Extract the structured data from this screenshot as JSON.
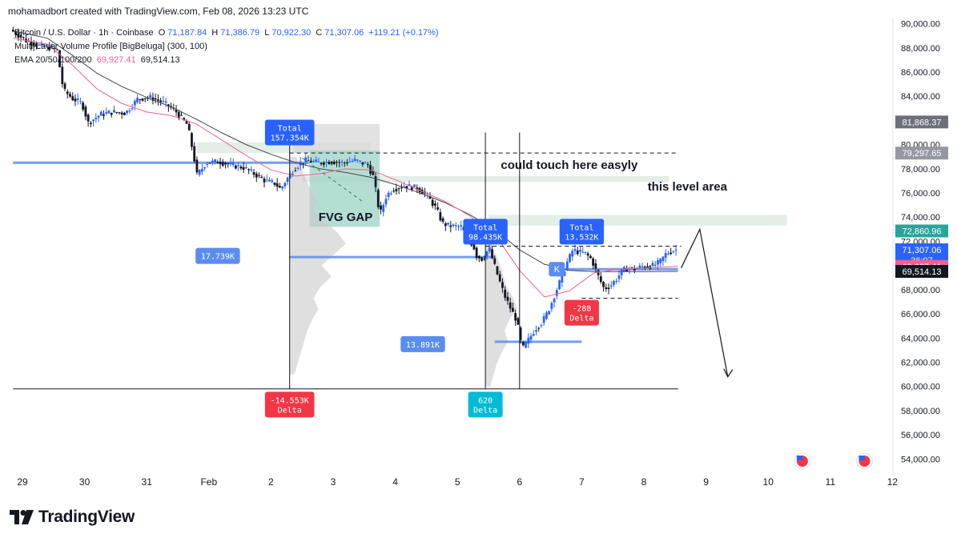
{
  "header": {
    "attribution": "mohamadbort created with TradingView.com, Feb 08, 2026 13:23 UTC"
  },
  "legend": {
    "symbol": "Bitcoin / U.S. Dollar · 1h · Coinbase",
    "open_label": "O",
    "open": "71,187.84",
    "high_label": "H",
    "high": "71,386.79",
    "low_label": "L",
    "low": "70,922.30",
    "close_label": "C",
    "close": "71,307.06",
    "change": "+119.21 (+0.17%)",
    "indicator1": "Multi-Layer Volume Profile [BigBeluga] (300, 100)",
    "indicator2_name": "EMA 20/50/100/200",
    "ema_a": "69,927.41",
    "ema_b": "69,514.13"
  },
  "branding": {
    "logo_text": "TradingView"
  },
  "colors": {
    "up": "#2962ff",
    "down": "#131722",
    "ema_fast": "#f06292",
    "ema_slow": "#434651",
    "level": "#5b8def",
    "zone": "#e3eee6",
    "fvg": "#9bd3c5",
    "delta_red": "#f23645",
    "delta_teal": "#00bcd4",
    "total_blue": "#2962ff"
  },
  "chart_data": {
    "type": "candlestick",
    "symbol": "BTCUSD",
    "timeframe": "1h",
    "ylim": [
      52700,
      90500
    ],
    "xlim": [
      28.85,
      12.0
    ],
    "y_ticks": [
      90000,
      88000,
      86000,
      84000,
      82000,
      80000,
      78000,
      76000,
      74000,
      72000,
      70000,
      68000,
      66000,
      64000,
      62000,
      60000,
      58000,
      56000,
      54000
    ],
    "y_tick_labels": [
      "90,000.00",
      "88,000.00",
      "86,000.00",
      "84,000.00",
      "82,000.00",
      "80,000.00",
      "78,000.00",
      "76,000.00",
      "74,000.00",
      "72,000.00",
      "70,000.00",
      "68,000.00",
      "66,000.00",
      "64,000.00",
      "62,000.00",
      "60,000.00",
      "58,000.00",
      "56,000.00",
      "54,000.00"
    ],
    "x_ticks": [
      {
        "label": "29",
        "day": 29
      },
      {
        "label": "30",
        "day": 30
      },
      {
        "label": "31",
        "day": 31
      },
      {
        "label": "Feb",
        "day": 32
      },
      {
        "label": "2",
        "day": 33
      },
      {
        "label": "3",
        "day": 34
      },
      {
        "label": "4",
        "day": 35
      },
      {
        "label": "5",
        "day": 36
      },
      {
        "label": "6",
        "day": 37
      },
      {
        "label": "7",
        "day": 38
      },
      {
        "label": "8",
        "day": 39
      },
      {
        "label": "9",
        "day": 40
      },
      {
        "label": "10",
        "day": 41
      },
      {
        "label": "11",
        "day": 42
      },
      {
        "label": "12",
        "day": 43
      }
    ],
    "price_path": [
      [
        28.85,
        89500
      ],
      [
        29.1,
        88600
      ],
      [
        29.3,
        88200
      ],
      [
        29.5,
        88000
      ],
      [
        29.6,
        87800
      ],
      [
        29.7,
        84500
      ],
      [
        29.85,
        83800
      ],
      [
        30.0,
        83400
      ],
      [
        30.1,
        81800
      ],
      [
        30.3,
        82500
      ],
      [
        30.5,
        82700
      ],
      [
        30.7,
        82600
      ],
      [
        30.9,
        83800
      ],
      [
        31.1,
        83900
      ],
      [
        31.3,
        83500
      ],
      [
        31.5,
        82800
      ],
      [
        31.7,
        81600
      ],
      [
        31.8,
        79000
      ],
      [
        31.85,
        77500
      ],
      [
        31.9,
        77800
      ],
      [
        32.0,
        78500
      ],
      [
        32.2,
        78600
      ],
      [
        32.4,
        78300
      ],
      [
        32.6,
        78100
      ],
      [
        32.8,
        77500
      ],
      [
        32.95,
        77000
      ],
      [
        33.1,
        76800
      ],
      [
        33.2,
        76300
      ],
      [
        33.25,
        76800
      ],
      [
        33.4,
        77900
      ],
      [
        33.5,
        78400
      ],
      [
        33.6,
        78700
      ],
      [
        33.8,
        78500
      ],
      [
        34.0,
        78600
      ],
      [
        34.2,
        78500
      ],
      [
        34.4,
        78700
      ],
      [
        34.6,
        78300
      ],
      [
        34.7,
        77200
      ],
      [
        34.75,
        75300
      ],
      [
        34.8,
        74300
      ],
      [
        34.9,
        75800
      ],
      [
        35.0,
        76300
      ],
      [
        35.2,
        76600
      ],
      [
        35.4,
        76400
      ],
      [
        35.55,
        75800
      ],
      [
        35.7,
        74700
      ],
      [
        35.8,
        73500
      ],
      [
        35.9,
        73300
      ],
      [
        36.1,
        73200
      ],
      [
        36.2,
        72300
      ],
      [
        36.3,
        71600
      ],
      [
        36.35,
        70800
      ],
      [
        36.45,
        70500
      ],
      [
        36.55,
        71500
      ],
      [
        36.6,
        70600
      ],
      [
        36.7,
        69000
      ],
      [
        36.8,
        67500
      ],
      [
        36.9,
        66400
      ],
      [
        37.0,
        65400
      ],
      [
        37.05,
        63800
      ],
      [
        37.1,
        63200
      ],
      [
        37.2,
        64000
      ],
      [
        37.3,
        64800
      ],
      [
        37.4,
        65300
      ],
      [
        37.5,
        66200
      ],
      [
        37.6,
        67500
      ],
      [
        37.7,
        68800
      ],
      [
        37.8,
        70200
      ],
      [
        37.9,
        71300
      ],
      [
        38.0,
        71100
      ],
      [
        38.1,
        71000
      ],
      [
        38.2,
        70500
      ],
      [
        38.3,
        69200
      ],
      [
        38.4,
        68100
      ],
      [
        38.5,
        68300
      ],
      [
        38.6,
        68900
      ],
      [
        38.7,
        69600
      ],
      [
        38.8,
        69800
      ],
      [
        38.9,
        69700
      ],
      [
        39.0,
        69900
      ],
      [
        39.2,
        70000
      ],
      [
        39.3,
        70300
      ],
      [
        39.4,
        71000
      ],
      [
        39.55,
        71307
      ]
    ],
    "ema_fast_path": [
      [
        28.85,
        88800
      ],
      [
        29.4,
        88300
      ],
      [
        29.8,
        86600
      ],
      [
        30.2,
        84600
      ],
      [
        30.6,
        83400
      ],
      [
        31.0,
        82700
      ],
      [
        31.4,
        82400
      ],
      [
        31.8,
        81700
      ],
      [
        32.2,
        80400
      ],
      [
        32.6,
        79100
      ],
      [
        33.0,
        77900
      ],
      [
        33.4,
        77400
      ],
      [
        33.8,
        77600
      ],
      [
        34.2,
        78000
      ],
      [
        34.6,
        77900
      ],
      [
        35.0,
        77100
      ],
      [
        35.4,
        76200
      ],
      [
        35.8,
        75300
      ],
      [
        36.2,
        74100
      ],
      [
        36.6,
        72600
      ],
      [
        37.0,
        69600
      ],
      [
        37.4,
        67400
      ],
      [
        37.8,
        67900
      ],
      [
        38.2,
        69400
      ],
      [
        38.6,
        69700
      ],
      [
        39.0,
        69800
      ],
      [
        39.55,
        69927
      ]
    ],
    "ema_slow_path": [
      [
        28.85,
        89400
      ],
      [
        29.4,
        88800
      ],
      [
        29.8,
        87400
      ],
      [
        30.2,
        85900
      ],
      [
        30.6,
        84800
      ],
      [
        31.0,
        83900
      ],
      [
        31.4,
        83100
      ],
      [
        31.8,
        82100
      ],
      [
        32.2,
        81000
      ],
      [
        32.6,
        80000
      ],
      [
        33.0,
        79200
      ],
      [
        33.4,
        78500
      ],
      [
        33.8,
        78000
      ],
      [
        34.2,
        77700
      ],
      [
        34.6,
        77300
      ],
      [
        35.0,
        76700
      ],
      [
        35.4,
        76000
      ],
      [
        35.8,
        75200
      ],
      [
        36.2,
        74200
      ],
      [
        36.6,
        73000
      ],
      [
        37.0,
        71300
      ],
      [
        37.4,
        70100
      ],
      [
        37.8,
        69600
      ],
      [
        38.2,
        69500
      ],
      [
        38.6,
        69500
      ],
      [
        39.0,
        69500
      ],
      [
        39.55,
        69514
      ]
    ],
    "levels": [
      {
        "name": "left-level",
        "y": 78500,
        "x1": 28.85,
        "x2": 33.6
      },
      {
        "name": "vp-poc-1",
        "y": 70700,
        "x1": 33.3,
        "x2": 36.6
      },
      {
        "name": "vp-poc-2",
        "y": 63700,
        "x1": 36.6,
        "x2": 38.0
      },
      {
        "name": "current-level",
        "y": 69700,
        "x1": 37.6,
        "x2": 39.55
      }
    ],
    "zones": [
      {
        "name": "upper-zone",
        "x1": 33.5,
        "x2": 39.4,
        "y1": 76900,
        "y2": 77400
      },
      {
        "name": "mid-zone",
        "x1": 36.5,
        "x2": 41.3,
        "y1": 73300,
        "y2": 74200
      },
      {
        "name": "left-zone",
        "x1": 31.8,
        "x2": 34.6,
        "y1": 79300,
        "y2": 80200
      }
    ],
    "fvg_box": {
      "x1": 33.3,
      "x2": 34.75,
      "y1": 73200,
      "y2": 79500
    },
    "profile_box": {
      "x1": 33.35,
      "x2": 34.75,
      "y1": 79300,
      "y2": 81700
    },
    "dashed_lines": [
      {
        "y": 79300,
        "x1": 33.3,
        "x2": 39.55
      },
      {
        "y": 71600,
        "x1": 36.45,
        "x2": 39.6
      },
      {
        "y": 67300,
        "x1": 38.0,
        "x2": 39.55
      }
    ],
    "vertical_lines": [
      {
        "x": 33.3
      },
      {
        "x": 36.45
      },
      {
        "x": 37.0
      }
    ],
    "baseline": {
      "y": 59800,
      "x1": 28.85,
      "x2": 39.55
    },
    "projection": [
      [
        39.6,
        69800
      ],
      [
        39.9,
        73000
      ],
      [
        40.35,
        60800
      ]
    ],
    "callouts": [
      {
        "text": "Total\n157.354K",
        "x": 33.3,
        "y": 81000,
        "color": "#2962ff"
      },
      {
        "text": "Total\n98.435K",
        "x": 36.45,
        "y": 72800,
        "color": "#2962ff"
      },
      {
        "text": "Total\n13.532K",
        "x": 38.0,
        "y": 72800,
        "color": "#2962ff"
      },
      {
        "text": "17.739K",
        "x": 32.5,
        "y": 70800,
        "color": "#5b8def",
        "side": "left"
      },
      {
        "text": "13.891K",
        "x": 35.8,
        "y": 63500,
        "color": "#5b8def",
        "side": "left"
      },
      {
        "text": "-14.553K\nDelta",
        "x": 33.3,
        "y": 58500,
        "color": "#f23645"
      },
      {
        "text": "620\nDelta",
        "x": 36.45,
        "y": 58500,
        "color": "#00bcd4"
      },
      {
        "text": "-288\nDelta",
        "x": 38.0,
        "y": 66100,
        "color": "#f23645"
      }
    ],
    "small_tag": {
      "text": "K",
      "x": 37.6,
      "y": 69700
    },
    "annotations": [
      {
        "text": "could touch here easyly",
        "x": 37.8,
        "y": 78000
      },
      {
        "text": "this level area",
        "x": 39.7,
        "y": 76200
      },
      {
        "text": "FVG GAP",
        "x": 34.2,
        "y": 73700
      }
    ],
    "price_labels": [
      {
        "text": "81,868.37",
        "y": 81868,
        "bg": "#6d6f7a"
      },
      {
        "text": "79,297.65",
        "y": 79297,
        "bg": "#9598a1"
      },
      {
        "text": "72,860.96",
        "y": 72860,
        "bg": "#26a69a"
      },
      {
        "text": "71,307.06\n36:07",
        "y": 71307,
        "bg": "#2962ff"
      },
      {
        "text": "69,927.41",
        "y": 69927,
        "bg": "#f06292"
      },
      {
        "text": "69,514.13",
        "y": 69514,
        "bg": "#131722"
      }
    ]
  }
}
